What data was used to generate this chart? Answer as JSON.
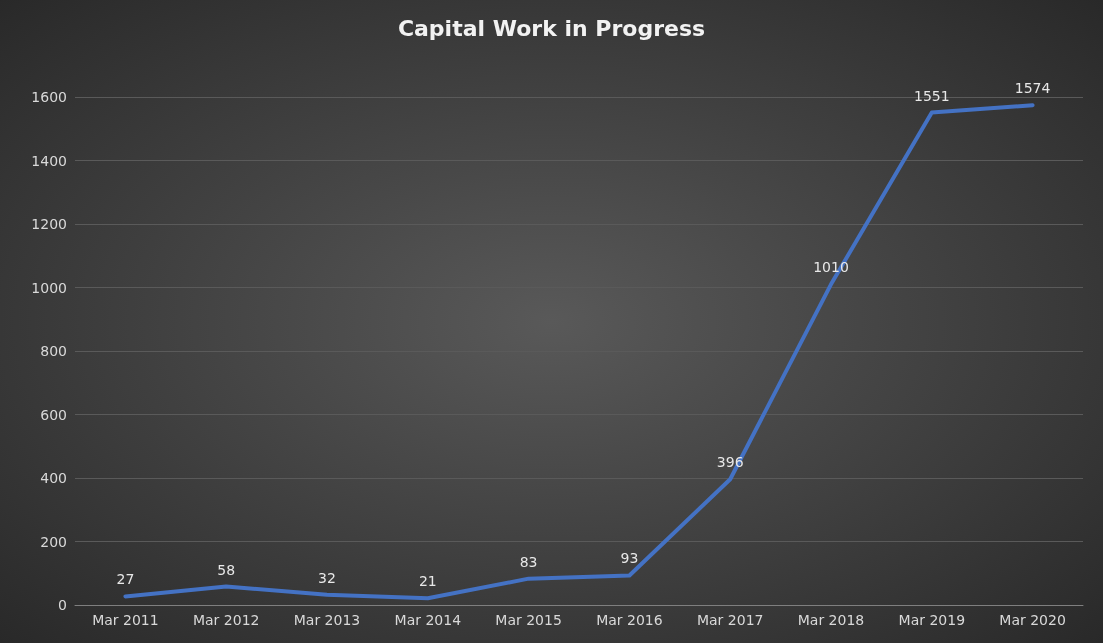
{
  "chart_data": {
    "type": "line",
    "title": "Capital Work in Progress",
    "categories": [
      "Mar 2011",
      "Mar 2012",
      "Mar 2013",
      "Mar 2014",
      "Mar 2015",
      "Mar 2016",
      "Mar 2017",
      "Mar 2018",
      "Mar 2019",
      "Mar 2020"
    ],
    "series": [
      {
        "color": "#4472c4",
        "values": [
          27,
          58,
          32,
          21,
          83,
          93,
          396,
          1010,
          1551,
          1574
        ]
      }
    ],
    "ylim": [
      0,
      1600
    ],
    "yticks": [
      0,
      200,
      400,
      600,
      800,
      1000,
      1200,
      1400,
      1600
    ],
    "grid": "y",
    "marker": "none",
    "line_style": "solid",
    "data_labels": true
  }
}
